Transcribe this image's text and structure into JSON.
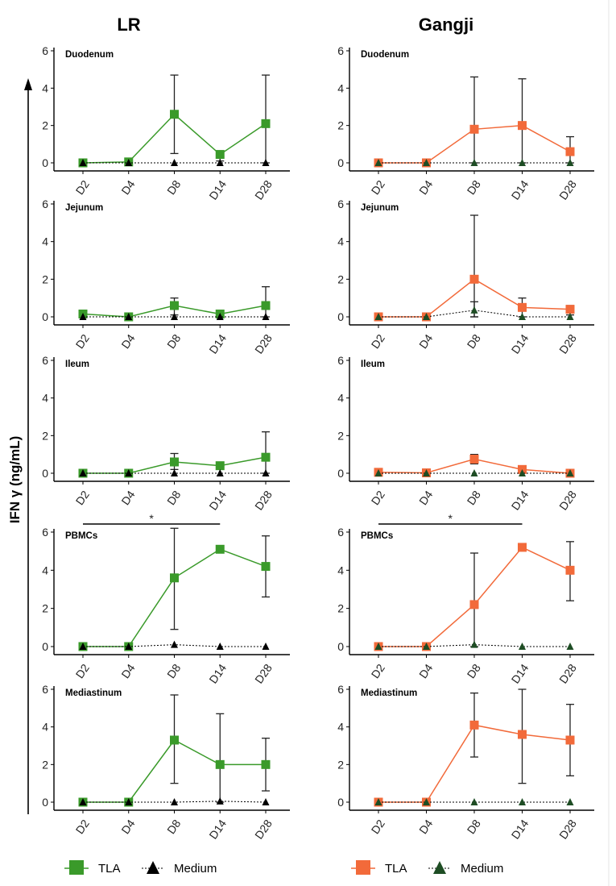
{
  "colors": {
    "LR": "#3a9a2a",
    "Gangji": "#f26a3a",
    "medium": "#000000",
    "medium_dark": "#1e4d24",
    "error": "#222222"
  },
  "y_axis_label": "IFN γ (ng/mL)",
  "legends": {
    "LR": {
      "tla": "TLA",
      "medium": "Medium"
    },
    "Gangji": {
      "tla": "TLA",
      "medium": "Medium"
    }
  },
  "chart_data": [
    {
      "type": "line",
      "column": "LR",
      "title": "Duodenum",
      "categories": [
        "D2",
        "D4",
        "D8",
        "D14",
        "D28"
      ],
      "ylim": [
        0,
        6
      ],
      "yticks": [
        0,
        2,
        4,
        6
      ],
      "series": [
        {
          "name": "TLA",
          "values": [
            0,
            0.05,
            2.6,
            0.45,
            2.1
          ],
          "err_low": [
            0,
            0,
            0.5,
            0.1,
            0
          ],
          "err_high": [
            0,
            0,
            4.7,
            0.45,
            4.7
          ]
        },
        {
          "name": "Medium",
          "values": [
            0,
            0,
            0,
            0,
            0
          ]
        }
      ]
    },
    {
      "type": "line",
      "column": "Gangji",
      "title": "Duodenum",
      "categories": [
        "D2",
        "D4",
        "D8",
        "D14",
        "D28"
      ],
      "ylim": [
        0,
        6
      ],
      "yticks": [
        0,
        2,
        4,
        6
      ],
      "series": [
        {
          "name": "TLA",
          "values": [
            0,
            0,
            1.8,
            2.0,
            0.6
          ],
          "err_low": [
            0,
            0,
            0,
            0,
            0
          ],
          "err_high": [
            0,
            0,
            4.6,
            4.5,
            1.4
          ]
        },
        {
          "name": "Medium",
          "values": [
            0,
            0,
            0,
            0,
            0
          ]
        }
      ]
    },
    {
      "type": "line",
      "column": "LR",
      "title": "Jejunum",
      "categories": [
        "D2",
        "D4",
        "D8",
        "D14",
        "D28"
      ],
      "ylim": [
        0,
        6
      ],
      "yticks": [
        0,
        2,
        4,
        6
      ],
      "series": [
        {
          "name": "TLA",
          "values": [
            0.15,
            0,
            0.6,
            0.15,
            0.6
          ],
          "err_low": [
            0,
            0,
            0.1,
            0,
            0
          ],
          "err_high": [
            0.3,
            0,
            1.0,
            0.3,
            1.6
          ]
        },
        {
          "name": "Medium",
          "values": [
            0,
            0,
            0,
            0,
            0
          ]
        }
      ]
    },
    {
      "type": "line",
      "column": "Gangji",
      "title": "Jejunum",
      "categories": [
        "D2",
        "D4",
        "D8",
        "D14",
        "D28"
      ],
      "ylim": [
        0,
        6
      ],
      "yticks": [
        0,
        2,
        4,
        6
      ],
      "series": [
        {
          "name": "TLA",
          "values": [
            0,
            0,
            2.0,
            0.5,
            0.4
          ],
          "err_low": [
            0,
            0,
            0,
            0,
            0.1
          ],
          "err_high": [
            0,
            0,
            5.4,
            1.0,
            0.6
          ]
        },
        {
          "name": "Medium",
          "values": [
            0,
            0,
            0.35,
            0,
            0
          ],
          "err_low": [
            0,
            0,
            0,
            0,
            0
          ],
          "err_high": [
            0,
            0,
            0.8,
            0,
            0
          ]
        }
      ]
    },
    {
      "type": "line",
      "column": "LR",
      "title": "Ileum",
      "categories": [
        "D2",
        "D4",
        "D8",
        "D14",
        "D28"
      ],
      "ylim": [
        0,
        6
      ],
      "yticks": [
        0,
        2,
        4,
        6
      ],
      "series": [
        {
          "name": "TLA",
          "values": [
            0,
            0,
            0.6,
            0.4,
            0.85
          ],
          "err_low": [
            0,
            0,
            0.2,
            0.3,
            0
          ],
          "err_high": [
            0,
            0,
            1.05,
            0.45,
            2.2
          ]
        },
        {
          "name": "Medium",
          "values": [
            0,
            0,
            0,
            0,
            0
          ]
        }
      ]
    },
    {
      "type": "line",
      "column": "Gangji",
      "title": "Ileum",
      "categories": [
        "D2",
        "D4",
        "D8",
        "D14",
        "D28"
      ],
      "ylim": [
        0,
        6
      ],
      "yticks": [
        0,
        2,
        4,
        6
      ],
      "series": [
        {
          "name": "TLA",
          "values": [
            0.05,
            0.02,
            0.75,
            0.2,
            0
          ],
          "err_low": [
            0,
            0,
            0.5,
            0.1,
            0
          ],
          "err_high": [
            0.1,
            0,
            1.0,
            0.3,
            0.1
          ]
        },
        {
          "name": "Medium",
          "values": [
            0,
            0,
            0,
            0,
            0
          ]
        }
      ]
    },
    {
      "type": "line",
      "column": "LR",
      "title": "PBMCs",
      "categories": [
        "D2",
        "D4",
        "D8",
        "D14",
        "D28"
      ],
      "ylim": [
        0,
        6
      ],
      "yticks": [
        0,
        2,
        4,
        6
      ],
      "series": [
        {
          "name": "TLA",
          "values": [
            0,
            0,
            3.6,
            5.1,
            4.2
          ],
          "err_low": [
            0,
            0,
            0.9,
            5.0,
            2.6
          ],
          "err_high": [
            0,
            0,
            6.2,
            5.2,
            5.8
          ]
        },
        {
          "name": "Medium",
          "values": [
            0,
            0,
            0.1,
            0,
            0
          ]
        }
      ],
      "significance": {
        "from": "D2",
        "to": "D14",
        "label": "*"
      }
    },
    {
      "type": "line",
      "column": "Gangji",
      "title": "PBMCs",
      "categories": [
        "D2",
        "D4",
        "D8",
        "D14",
        "D28"
      ],
      "ylim": [
        0,
        6
      ],
      "yticks": [
        0,
        2,
        4,
        6
      ],
      "series": [
        {
          "name": "TLA",
          "values": [
            0,
            0,
            2.2,
            5.2,
            4.0
          ],
          "err_low": [
            0,
            0,
            0,
            5.1,
            2.4
          ],
          "err_high": [
            0,
            0,
            4.9,
            5.3,
            5.5
          ]
        },
        {
          "name": "Medium",
          "values": [
            0,
            0,
            0.1,
            0,
            0
          ]
        }
      ],
      "significance": {
        "from": "D2",
        "to": "D14",
        "label": "*"
      }
    },
    {
      "type": "line",
      "column": "LR",
      "title": "Mediastinum",
      "categories": [
        "D2",
        "D4",
        "D8",
        "D14",
        "D28"
      ],
      "ylim": [
        0,
        6
      ],
      "yticks": [
        0,
        2,
        4,
        6
      ],
      "series": [
        {
          "name": "TLA",
          "values": [
            0,
            0,
            3.3,
            2.0,
            2.0
          ],
          "err_low": [
            0,
            0,
            1.0,
            0,
            0.6
          ],
          "err_high": [
            0,
            0,
            5.7,
            4.7,
            3.4
          ]
        },
        {
          "name": "Medium",
          "values": [
            0,
            0,
            0,
            0.05,
            0
          ]
        }
      ]
    },
    {
      "type": "line",
      "column": "Gangji",
      "title": "Mediastinum",
      "categories": [
        "D2",
        "D4",
        "D8",
        "D14",
        "D28"
      ],
      "ylim": [
        0,
        6
      ],
      "yticks": [
        0,
        2,
        4,
        6
      ],
      "series": [
        {
          "name": "TLA",
          "values": [
            0,
            0,
            4.1,
            3.6,
            3.3
          ],
          "err_low": [
            0,
            0,
            2.4,
            1.0,
            1.4
          ],
          "err_high": [
            0,
            0,
            5.8,
            6.0,
            5.2
          ]
        },
        {
          "name": "Medium",
          "values": [
            0,
            0,
            0,
            0,
            0
          ]
        }
      ]
    }
  ]
}
